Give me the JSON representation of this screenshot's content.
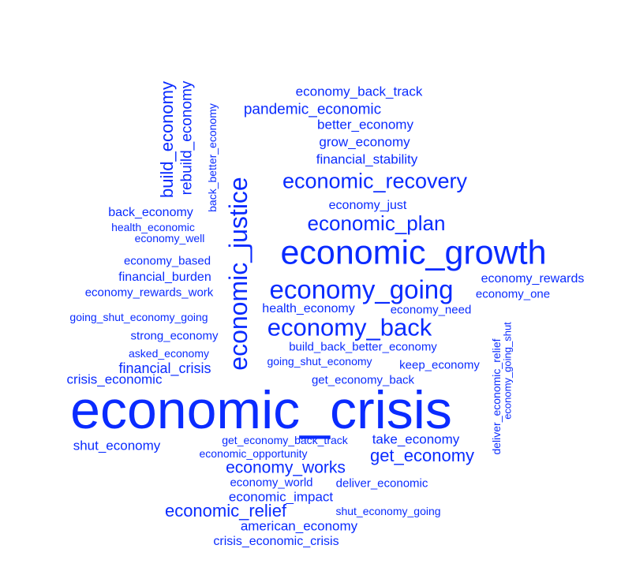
{
  "cloud": {
    "color": "#0a2bff",
    "words": [
      "economic_crisis",
      "economic_growth",
      "economy_going",
      "economy_back",
      "economic_justice",
      "economic_recovery",
      "economic_plan",
      "get_economy",
      "economy_works",
      "economic_relief",
      "build_economy",
      "rebuild_economy",
      "financial_crisis",
      "economy_back_track",
      "pandemic_economic",
      "better_economy",
      "grow_economy",
      "financial_stability",
      "economy_just",
      "back_better_economy",
      "back_economy",
      "health_economic",
      "economy_well",
      "economy_based",
      "financial_burden",
      "economy_rewards_work",
      "economy_rewards",
      "economy_one",
      "health_economy",
      "economy_need",
      "going_shut_economy_going",
      "strong_economy",
      "build_back_better_economy",
      "asked_economy",
      "going_shut_economy",
      "keep_economy",
      "crisis_economic",
      "get_economy_back",
      "deliver_economic_relief",
      "economy_going_shut",
      "shut_economy",
      "get_economy_back_track",
      "take_economy",
      "economic_opportunity",
      "economy_world",
      "deliver_economic",
      "economic_impact",
      "shut_economy_going",
      "american_economy",
      "crisis_economic_crisis"
    ]
  }
}
